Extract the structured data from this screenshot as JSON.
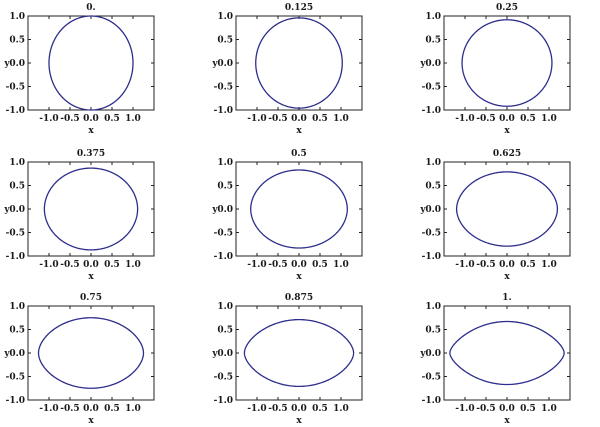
{
  "curve_color": "#2d2d8c",
  "chart_data": [
    {
      "type": "line",
      "title": "0.",
      "xlabel": "x",
      "ylabel": "y",
      "xlim": [
        -1.5,
        1.5
      ],
      "ylim": [
        -1.0,
        1.0
      ],
      "xticks": [
        "-1.0",
        "-0.5",
        "0.0",
        "0.5",
        "1.0"
      ],
      "yticks": [
        "-1.0",
        "-0.5",
        "0.0",
        "0.5",
        "1.0"
      ],
      "series": [
        {
          "x_extent": [
            -1.0,
            1.0
          ],
          "y_extent": [
            -1.0,
            1.0
          ],
          "tip_sharpness": 0.0
        }
      ]
    },
    {
      "type": "line",
      "title": "0.125",
      "xlabel": "x",
      "ylabel": "y",
      "xlim": [
        -1.5,
        1.5
      ],
      "ylim": [
        -1.0,
        1.0
      ],
      "xticks": [
        "-1.0",
        "-0.5",
        "0.0",
        "0.5",
        "1.0"
      ],
      "yticks": [
        "-1.0",
        "-0.5",
        "0.0",
        "0.5",
        "1.0"
      ],
      "series": [
        {
          "x_extent": [
            -1.03,
            1.03
          ],
          "y_extent": [
            -0.96,
            0.96
          ],
          "tip_sharpness": 0.03
        }
      ]
    },
    {
      "type": "line",
      "title": "0.25",
      "xlabel": "x",
      "ylabel": "y",
      "xlim": [
        -1.5,
        1.5
      ],
      "ylim": [
        -1.0,
        1.0
      ],
      "xticks": [
        "-1.0",
        "-0.5",
        "0.0",
        "0.5",
        "1.0"
      ],
      "yticks": [
        "-1.0",
        "-0.5",
        "0.0",
        "0.5",
        "1.0"
      ],
      "series": [
        {
          "x_extent": [
            -1.07,
            1.07
          ],
          "y_extent": [
            -0.92,
            0.92
          ],
          "tip_sharpness": 0.07
        }
      ]
    },
    {
      "type": "line",
      "title": "0.375",
      "xlabel": "x",
      "ylabel": "y",
      "xlim": [
        -1.5,
        1.5
      ],
      "ylim": [
        -1.0,
        1.0
      ],
      "xticks": [
        "-1.0",
        "-0.5",
        "0.0",
        "0.5",
        "1.0"
      ],
      "yticks": [
        "-1.0",
        "-0.5",
        "0.0",
        "0.5",
        "1.0"
      ],
      "series": [
        {
          "x_extent": [
            -1.11,
            1.11
          ],
          "y_extent": [
            -0.87,
            0.87
          ],
          "tip_sharpness": 0.11
        }
      ]
    },
    {
      "type": "line",
      "title": "0.5",
      "xlabel": "x",
      "ylabel": "y",
      "xlim": [
        -1.5,
        1.5
      ],
      "ylim": [
        -1.0,
        1.0
      ],
      "xticks": [
        "-1.0",
        "-0.5",
        "0.0",
        "0.5",
        "1.0"
      ],
      "yticks": [
        "-1.0",
        "-0.5",
        "0.0",
        "0.5",
        "1.0"
      ],
      "series": [
        {
          "x_extent": [
            -1.15,
            1.15
          ],
          "y_extent": [
            -0.83,
            0.83
          ],
          "tip_sharpness": 0.15
        }
      ]
    },
    {
      "type": "line",
      "title": "0.625",
      "xlabel": "x",
      "ylabel": "y",
      "xlim": [
        -1.5,
        1.5
      ],
      "ylim": [
        -1.0,
        1.0
      ],
      "xticks": [
        "-1.0",
        "-0.5",
        "0.0",
        "0.5",
        "1.0"
      ],
      "yticks": [
        "-1.0",
        "-0.5",
        "0.0",
        "0.5",
        "1.0"
      ],
      "series": [
        {
          "x_extent": [
            -1.2,
            1.2
          ],
          "y_extent": [
            -0.79,
            0.79
          ],
          "tip_sharpness": 0.2
        }
      ]
    },
    {
      "type": "line",
      "title": "0.75",
      "xlabel": "x",
      "ylabel": "y",
      "xlim": [
        -1.5,
        1.5
      ],
      "ylim": [
        -1.0,
        1.0
      ],
      "xticks": [
        "-1.0",
        "-0.5",
        "0.0",
        "0.5",
        "1.0"
      ],
      "yticks": [
        "-1.0",
        "-0.5",
        "0.0",
        "0.5",
        "1.0"
      ],
      "series": [
        {
          "x_extent": [
            -1.25,
            1.25
          ],
          "y_extent": [
            -0.75,
            0.75
          ],
          "tip_sharpness": 0.27
        }
      ]
    },
    {
      "type": "line",
      "title": "0.875",
      "xlabel": "x",
      "ylabel": "y",
      "xlim": [
        -1.5,
        1.5
      ],
      "ylim": [
        -1.0,
        1.0
      ],
      "xticks": [
        "-1.0",
        "-0.5",
        "0.0",
        "0.5",
        "1.0"
      ],
      "yticks": [
        "-1.0",
        "-0.5",
        "0.0",
        "0.5",
        "1.0"
      ],
      "series": [
        {
          "x_extent": [
            -1.3,
            1.3
          ],
          "y_extent": [
            -0.71,
            0.71
          ],
          "tip_sharpness": 0.35
        }
      ]
    },
    {
      "type": "line",
      "title": "1.",
      "xlabel": "x",
      "ylabel": "y",
      "xlim": [
        -1.5,
        1.5
      ],
      "ylim": [
        -1.0,
        1.0
      ],
      "xticks": [
        "-1.0",
        "-0.5",
        "0.0",
        "0.5",
        "1.0"
      ],
      "yticks": [
        "-1.0",
        "-0.5",
        "0.0",
        "0.5",
        "1.0"
      ],
      "series": [
        {
          "x_extent": [
            -1.36,
            1.36
          ],
          "y_extent": [
            -0.67,
            0.67
          ],
          "tip_sharpness": 0.45
        }
      ]
    }
  ]
}
